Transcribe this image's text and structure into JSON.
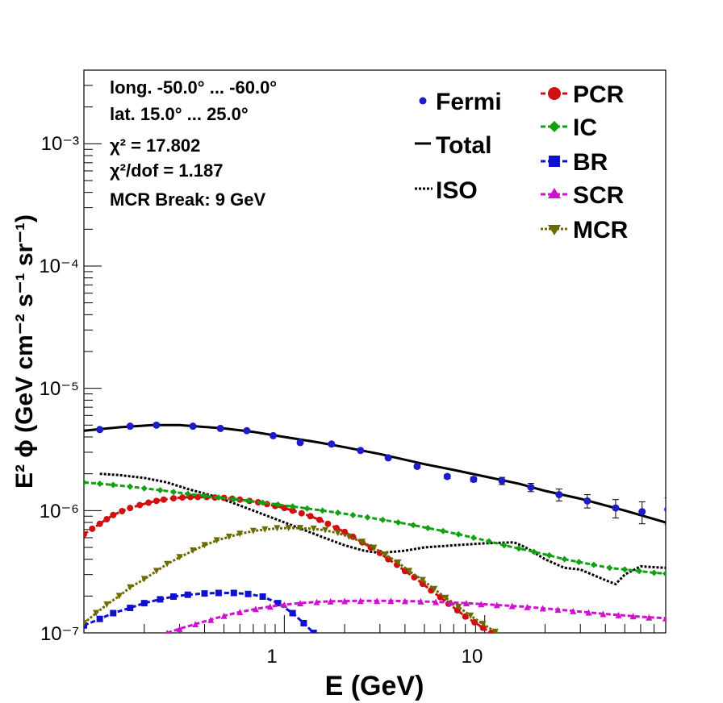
{
  "chart_data": {
    "type": "line",
    "xlabel": "E (GeV)",
    "ylabel": "E² ϕ (GeV cm⁻² s⁻¹ sr⁻¹)",
    "xscale": "log",
    "yscale": "log",
    "xlim": [
      0.1,
      80
    ],
    "ylim": [
      1e-07,
      0.004
    ],
    "x_ticks": [
      {
        "label": "1",
        "value": 1
      },
      {
        "label": "10",
        "value": 10
      }
    ],
    "y_ticks": [
      {
        "label": "10⁻⁷",
        "value": 1e-07
      },
      {
        "label": "10⁻⁶",
        "value": 1e-06
      },
      {
        "label": "10⁻⁵",
        "value": 1e-05
      },
      {
        "label": "10⁻⁴",
        "value": 0.0001
      },
      {
        "label": "10⁻³",
        "value": 0.001
      }
    ],
    "grid": false,
    "info_lines": [
      "long. -50.0° ... -60.0°",
      "lat. 15.0° ... 25.0°",
      "χ² = 17.802",
      "χ²/dof = 1.187",
      "MCR Break:  9 GeV"
    ],
    "legend_left": [
      "Fermi",
      "Total",
      "ISO"
    ],
    "legend_right": [
      "PCR",
      "IC",
      "BR",
      "SCR",
      "MCR"
    ],
    "fermi": {
      "name": "Fermi",
      "color": "#1c1cc8",
      "x": [
        0.12,
        0.17,
        0.23,
        0.35,
        0.48,
        0.65,
        0.88,
        1.2,
        1.72,
        2.4,
        3.3,
        4.6,
        6.5,
        8.8,
        12.2,
        17,
        23.5,
        32.5,
        45,
        61,
        82
      ],
      "y": [
        4.6e-06,
        4.9e-06,
        5e-06,
        4.9e-06,
        4.7e-06,
        4.5e-06,
        4.1e-06,
        3.6e-06,
        3.5e-06,
        3.1e-06,
        2.7e-06,
        2.3e-06,
        1.9e-06,
        1.8e-06,
        1.75e-06,
        1.55e-06,
        1.35e-06,
        1.2e-06,
        1.05e-06,
        9.8e-07,
        1.02e-06
      ],
      "err": [
        1e-07,
        1e-07,
        1e-07,
        1e-07,
        1e-07,
        8e-08,
        8e-08,
        8e-08,
        8e-08,
        8e-08,
        7e-08,
        7e-08,
        7e-08,
        8e-08,
        1.2e-07,
        1.2e-07,
        1.5e-07,
        1.5e-07,
        1.8e-07,
        2e-07,
        2.5e-07
      ]
    },
    "series": [
      {
        "name": "Total",
        "color": "#000000",
        "style": "solid",
        "marker": "none",
        "marker_every": 1,
        "x": [
          0.1,
          0.15,
          0.22,
          0.3,
          0.5,
          0.7,
          1,
          1.5,
          2,
          3,
          5,
          7,
          10,
          15,
          20,
          30,
          50,
          80
        ],
        "y": [
          4.5e-06,
          4.8e-06,
          5e-06,
          5e-06,
          4.7e-06,
          4.4e-06,
          4e-06,
          3.6e-06,
          3.3e-06,
          2.9e-06,
          2.4e-06,
          2.15e-06,
          1.9e-06,
          1.65e-06,
          1.45e-06,
          1.25e-06,
          1e-06,
          8e-07
        ]
      },
      {
        "name": "ISO",
        "color": "#000000",
        "style": "dotted",
        "marker": "none",
        "marker_every": 1,
        "x": [
          0.12,
          0.15,
          0.2,
          0.26,
          0.33,
          0.42,
          0.52,
          0.7,
          1,
          1.5,
          2,
          2.5,
          3,
          4,
          5,
          7,
          10,
          14,
          16,
          20,
          25,
          30,
          40,
          45,
          50,
          60,
          80
        ],
        "y": [
          2e-06,
          1.95e-06,
          1.85e-06,
          1.7e-06,
          1.5e-06,
          1.35e-06,
          1.2e-06,
          1e-06,
          8e-07,
          6.2e-07,
          5.2e-07,
          4.7e-07,
          4.5e-07,
          4.7e-07,
          5e-07,
          5.2e-07,
          5.4e-07,
          5.5e-07,
          5e-07,
          4e-07,
          3.4e-07,
          3.3e-07,
          2.7e-07,
          2.5e-07,
          3e-07,
          3.5e-07,
          3.4e-07
        ]
      },
      {
        "name": "PCR",
        "color": "#d01010",
        "style": "dashed",
        "marker": "circle",
        "marker_every": 1,
        "x": [
          0.1,
          0.11,
          0.12,
          0.13,
          0.14,
          0.155,
          0.17,
          0.19,
          0.21,
          0.23,
          0.25,
          0.28,
          0.31,
          0.34,
          0.37,
          0.41,
          0.45,
          0.5,
          0.55,
          0.6,
          0.67,
          0.74,
          0.82,
          0.9,
          1,
          1.1,
          1.22,
          1.35,
          1.5,
          1.65,
          1.82,
          2,
          2.2,
          2.45,
          2.7,
          3,
          3.3,
          3.65,
          4,
          4.45,
          4.9,
          5.4,
          6,
          6.6,
          7.3,
          8,
          8.9,
          9.8,
          10.8,
          12,
          13.2,
          14.6,
          16.1,
          17.8,
          19.6,
          21.7,
          24,
          26.5
        ],
        "y": [
          6.4e-07,
          7.1e-07,
          7.8e-07,
          8.5e-07,
          9.2e-07,
          9.9e-07,
          1.05e-06,
          1.11e-06,
          1.16e-06,
          1.2e-06,
          1.23e-06,
          1.26e-06,
          1.28e-06,
          1.29e-06,
          1.29e-06,
          1.29e-06,
          1.28e-06,
          1.27e-06,
          1.25e-06,
          1.23e-06,
          1.2e-06,
          1.17e-06,
          1.13e-06,
          1.09e-06,
          1.05e-06,
          1e-06,
          9.5e-07,
          9e-07,
          8.4e-07,
          7.8e-07,
          7.2e-07,
          6.7e-07,
          6.1e-07,
          5.5e-07,
          5e-07,
          4.5e-07,
          4e-07,
          3.6e-07,
          3.2e-07,
          2.85e-07,
          2.52e-07,
          2.22e-07,
          1.96e-07,
          1.73e-07,
          1.53e-07,
          1.36e-07,
          1.22e-07,
          1.1e-07,
          1e-07,
          9.2e-08,
          8.6e-08,
          8.2e-08,
          7.9e-08,
          7.7e-08,
          7.6e-08,
          7.5e-08,
          7.4e-08,
          7.3e-08
        ]
      },
      {
        "name": "IC",
        "color": "#10a010",
        "style": "dashed",
        "marker": "diamond",
        "marker_every": 1,
        "x": [
          0.1,
          0.12,
          0.14,
          0.17,
          0.2,
          0.24,
          0.28,
          0.33,
          0.4,
          0.47,
          0.56,
          0.66,
          0.78,
          0.93,
          1.1,
          1.3,
          1.55,
          1.85,
          2.2,
          2.6,
          3.1,
          3.7,
          4.4,
          5.2,
          6.2,
          7.4,
          8.8,
          10.5,
          12.5,
          14.8,
          17.6,
          21,
          25,
          29.5,
          35,
          42,
          50,
          59,
          70,
          80
        ],
        "y": [
          1.7e-06,
          1.66e-06,
          1.62e-06,
          1.57e-06,
          1.52e-06,
          1.47e-06,
          1.42e-06,
          1.37e-06,
          1.32e-06,
          1.28e-06,
          1.24e-06,
          1.2e-06,
          1.16e-06,
          1.12e-06,
          1.08e-06,
          1.04e-06,
          1e-06,
          9.6e-07,
          9.2e-07,
          8.8e-07,
          8.4e-07,
          8e-07,
          7.6e-07,
          7.2e-07,
          6.8e-07,
          6.4e-07,
          6e-07,
          5.6e-07,
          5.2e-07,
          4.9e-07,
          4.6e-07,
          4.3e-07,
          4e-07,
          3.8e-07,
          3.6e-07,
          3.4e-07,
          3.3e-07,
          3.2e-07,
          3.1e-07,
          3.05e-07
        ]
      },
      {
        "name": "BR",
        "color": "#1010d0",
        "style": "dashed",
        "marker": "square",
        "marker_every": 1,
        "x": [
          0.1,
          0.12,
          0.14,
          0.17,
          0.2,
          0.24,
          0.28,
          0.33,
          0.4,
          0.47,
          0.56,
          0.66,
          0.78,
          0.93,
          1.1,
          1.25,
          1.4
        ],
        "y": [
          1.15e-07,
          1.3e-07,
          1.45e-07,
          1.6e-07,
          1.75e-07,
          1.88e-07,
          1.98e-07,
          2.05e-07,
          2.1e-07,
          2.12e-07,
          2.12e-07,
          2.08e-07,
          1.98e-07,
          1.75e-07,
          1.45e-07,
          1.2e-07,
          1e-07
        ]
      },
      {
        "name": "SCR",
        "color": "#d010d0",
        "style": "dashed",
        "marker": "triangle",
        "marker_every": 1,
        "x": [
          0.26,
          0.3,
          0.36,
          0.43,
          0.5,
          0.6,
          0.72,
          0.85,
          1.0,
          1.2,
          1.45,
          1.7,
          2.0,
          2.4,
          2.9,
          3.4,
          4.0,
          4.8,
          5.7,
          6.8,
          8.1,
          9.6,
          11.5,
          13.7,
          16.3,
          19.5,
          23.2,
          27.6,
          33,
          39,
          46.5,
          55,
          66,
          80
        ],
        "y": [
          1e-07,
          1.08e-07,
          1.18e-07,
          1.28e-07,
          1.38e-07,
          1.48e-07,
          1.57e-07,
          1.64e-07,
          1.7e-07,
          1.75e-07,
          1.79e-07,
          1.81e-07,
          1.82e-07,
          1.83e-07,
          1.83e-07,
          1.83e-07,
          1.82e-07,
          1.81e-07,
          1.79e-07,
          1.77e-07,
          1.75e-07,
          1.72e-07,
          1.69e-07,
          1.66e-07,
          1.63e-07,
          1.59e-07,
          1.55e-07,
          1.51e-07,
          1.47e-07,
          1.43e-07,
          1.4e-07,
          1.37e-07,
          1.34e-07,
          1.32e-07
        ]
      },
      {
        "name": "MCR",
        "color": "#6b6b00",
        "style": "dotted",
        "marker": "triangle-down",
        "marker_every": 1,
        "x": [
          0.1,
          0.115,
          0.13,
          0.15,
          0.17,
          0.2,
          0.23,
          0.26,
          0.3,
          0.35,
          0.4,
          0.46,
          0.53,
          0.6,
          0.7,
          0.8,
          0.92,
          1.05,
          1.2,
          1.4,
          1.6,
          1.85,
          2.1,
          2.45,
          2.8,
          3.2,
          3.7,
          4.2,
          4.9,
          5.6,
          6.4,
          7.4,
          8.5,
          9.8,
          11.3,
          13,
          15,
          17.3,
          20,
          23,
          26.5,
          30
        ],
        "y": [
          1.2e-07,
          1.45e-07,
          1.7e-07,
          2e-07,
          2.35e-07,
          2.75e-07,
          3.2e-07,
          3.65e-07,
          4.15e-07,
          4.7e-07,
          5.2e-07,
          5.7e-07,
          6.1e-07,
          6.45e-07,
          6.8e-07,
          7e-07,
          7.15e-07,
          7.2e-07,
          7.18e-07,
          7.1e-07,
          6.9e-07,
          6.55e-07,
          6.1e-07,
          5.55e-07,
          4.95e-07,
          4.35e-07,
          3.75e-07,
          3.2e-07,
          2.7e-07,
          2.28e-07,
          1.93e-07,
          1.63e-07,
          1.38e-07,
          1.18e-07,
          1.02e-07,
          8.9e-08,
          8.2e-08,
          7.8e-08,
          7.6e-08,
          7.5e-08,
          7.4e-08,
          7.3e-08
        ]
      }
    ]
  }
}
